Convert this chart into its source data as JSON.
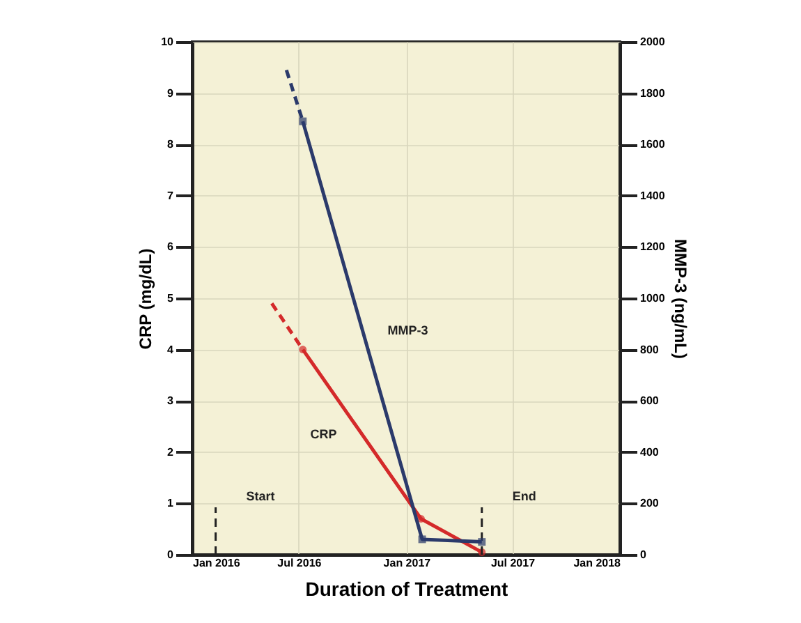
{
  "chart_data": {
    "type": "line",
    "xlabel": "Duration of Treatment",
    "ylabel": "CRP (mg/dL)",
    "y2label": "MMP-3 (ng/mL)",
    "xlim": [
      "2016-01",
      "2018-01"
    ],
    "xticks": [
      {
        "value": "2016-01",
        "label": "Jan 2016"
      },
      {
        "value": "2016-07",
        "label": "Jul 2016"
      },
      {
        "value": "2017-01",
        "label": "Jan 2017"
      },
      {
        "value": "2017-07",
        "label": "Jul 2017"
      },
      {
        "value": "2018-01",
        "label": "Jan 2018"
      }
    ],
    "ylim": [
      0,
      10
    ],
    "yticks": [
      0,
      1,
      2,
      3,
      4,
      5,
      6,
      7,
      8,
      9,
      10
    ],
    "y2lim": [
      0,
      2000
    ],
    "y2ticks": [
      0,
      200,
      400,
      600,
      800,
      1000,
      1200,
      1400,
      1600,
      1800,
      2000
    ],
    "grid": true,
    "series": [
      {
        "color": "#d42a2a",
        "line_style": "dashed",
        "x": [
          "2016-05-16",
          "2016-07-08"
        ],
        "values": [
          4.9,
          4.0
        ]
      },
      {
        "name": "CRP",
        "color": "#d42a2a",
        "line_style": "solid",
        "marker": "circle",
        "x": [
          "2016-07-08",
          "2017-01-26",
          "2017-05-10"
        ],
        "values": [
          4.0,
          0.7,
          0.05
        ]
      },
      {
        "color": "#2b3a6b",
        "axis": "y2",
        "line_style": "dashed",
        "x": [
          "2016-06-10",
          "2016-07-08"
        ],
        "values": [
          1890,
          1690
        ]
      },
      {
        "name": "MMP-3",
        "color": "#2b3a6b",
        "axis": "y2",
        "line_style": "solid",
        "marker": "square",
        "x": [
          "2016-07-08",
          "2017-01-28",
          "2017-05-10"
        ],
        "values": [
          1690,
          60,
          50
        ]
      }
    ],
    "ref_lines": [
      {
        "axis": "x",
        "value": "2016-02-10",
        "label": "Start",
        "line_style": "dashed"
      },
      {
        "axis": "x",
        "value": "2017-05-10",
        "label": "End",
        "line_style": "dashed"
      }
    ]
  }
}
